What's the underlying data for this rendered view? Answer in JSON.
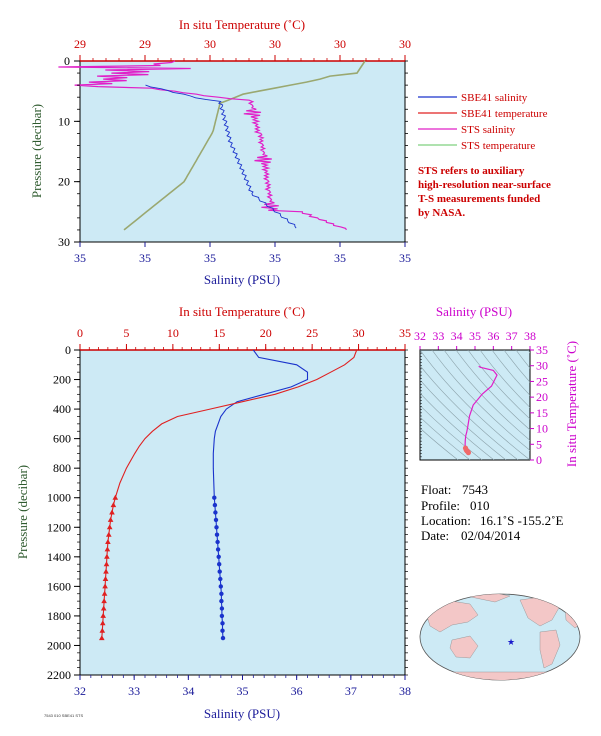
{
  "colors": {
    "plot_bg": "#cdeaf5",
    "salinity_line": "#1a33cc",
    "temperature_line": "#e02020",
    "sts_salinity": "#e020c8",
    "sts_temperature": "#9aa870",
    "axis_red": "#cc0000",
    "axis_blue": "#1a1a99",
    "axis_green": "#2e5a2e",
    "axis_magenta": "#cc00cc",
    "land": "#f3c7c7",
    "ocean": "#cdeaf5"
  },
  "chart_data": [
    {
      "type": "line",
      "id": "near-surface",
      "top_title": "In situ Temperature (˚C)",
      "top_ticks": [
        "29",
        "29",
        "30",
        "30",
        "30",
        "30"
      ],
      "bottom_title": "Salinity (PSU)",
      "bottom_ticks": [
        "35",
        "35",
        "35",
        "35",
        "35",
        "35"
      ],
      "ylabel": "Pressure (decibar)",
      "y_ticks": [
        "0",
        "10",
        "20",
        "30"
      ],
      "ylim": [
        0,
        30
      ],
      "grid": false,
      "legend_position": "right",
      "legend": [
        "SBE41 salinity",
        "SBE41 temperature",
        "STS salinity",
        "STS temperature"
      ],
      "note": [
        "STS refers to auxiliary",
        "high-resolution near-surface",
        "T-S measurements funded",
        "by NASA."
      ]
    },
    {
      "type": "line",
      "id": "full-profile",
      "top_title": "In situ Temperature (˚C)",
      "top_ticks": [
        "0",
        "5",
        "10",
        "15",
        "20",
        "25",
        "30",
        "35"
      ],
      "xlim_temperature": [
        0,
        35
      ],
      "bottom_title": "Salinity (PSU)",
      "bottom_ticks": [
        "32",
        "33",
        "34",
        "35",
        "36",
        "37",
        "38"
      ],
      "xlim_salinity": [
        32,
        38
      ],
      "ylabel": "Pressure (decibar)",
      "y_ticks": [
        "0",
        "200",
        "400",
        "600",
        "800",
        "1000",
        "1200",
        "1400",
        "1600",
        "1800",
        "2000",
        "2200"
      ],
      "ylim": [
        0,
        2200
      ],
      "grid": false,
      "series": [
        {
          "name": "SBE41 salinity",
          "pressure": [
            0,
            50,
            100,
            150,
            200,
            250,
            300,
            350,
            400,
            450,
            500,
            550,
            600,
            650,
            700,
            800,
            900,
            1000,
            1050,
            1100,
            1150,
            1200,
            1250,
            1300,
            1350,
            1400,
            1450,
            1500,
            1550,
            1600,
            1650,
            1700,
            1750,
            1800,
            1850,
            1900,
            1950
          ],
          "values": [
            35.2,
            35.3,
            36.0,
            36.2,
            36.2,
            35.9,
            35.4,
            34.9,
            34.7,
            34.6,
            34.55,
            34.5,
            34.48,
            34.47,
            34.46,
            34.46,
            34.47,
            34.48,
            34.49,
            34.5,
            34.51,
            34.52,
            34.53,
            34.54,
            34.55,
            34.56,
            34.57,
            34.58,
            34.59,
            34.6,
            34.61,
            34.61,
            34.62,
            34.62,
            34.63,
            34.63,
            34.64
          ]
        },
        {
          "name": "SBE41 temperature",
          "pressure": [
            0,
            50,
            100,
            150,
            200,
            250,
            300,
            350,
            400,
            450,
            500,
            550,
            600,
            650,
            700,
            800,
            900,
            1000,
            1050,
            1100,
            1150,
            1200,
            1250,
            1300,
            1350,
            1400,
            1450,
            1500,
            1550,
            1600,
            1650,
            1700,
            1750,
            1800,
            1850,
            1900,
            1950
          ],
          "values": [
            29.8,
            29.5,
            28.5,
            27.0,
            25.5,
            23.5,
            21.0,
            17.5,
            14.0,
            10.5,
            8.8,
            7.8,
            7.0,
            6.4,
            5.9,
            5.0,
            4.3,
            3.8,
            3.6,
            3.45,
            3.3,
            3.2,
            3.1,
            3.0,
            2.95,
            2.9,
            2.85,
            2.8,
            2.75,
            2.7,
            2.65,
            2.6,
            2.55,
            2.5,
            2.45,
            2.4,
            2.35
          ]
        }
      ]
    },
    {
      "type": "line",
      "id": "ts-diagram",
      "top_title": "Salinity (PSU)",
      "top_ticks": [
        "32",
        "33",
        "34",
        "35",
        "36",
        "37",
        "38"
      ],
      "xlim": [
        32,
        38
      ],
      "right_title": "In situ Temperature (˚C)",
      "right_ticks": [
        "35",
        "30",
        "25",
        "20",
        "15",
        "10",
        "5",
        "0"
      ],
      "ylim": [
        0,
        35
      ],
      "series": [
        {
          "name": "T-S",
          "x": [
            35.2,
            35.3,
            36.0,
            36.2,
            35.9,
            35.4,
            34.9,
            34.7,
            34.6,
            34.55,
            34.5,
            34.47,
            34.46,
            34.48,
            34.52,
            34.56,
            34.6,
            34.64
          ],
          "y": [
            29.8,
            29.5,
            28.5,
            27.0,
            23.5,
            21.0,
            17.5,
            14.0,
            10.5,
            8.8,
            7.8,
            6.4,
            5.0,
            3.8,
            3.2,
            2.9,
            2.7,
            2.35
          ]
        }
      ]
    }
  ],
  "float_info": {
    "float_label": "Float:",
    "float_value": "7543",
    "profile_label": "Profile:",
    "profile_value": "010",
    "location_label": "Location:",
    "location_value": "16.1˚S  -155.2˚E",
    "date_label": "Date:",
    "date_value": "02/04/2014"
  },
  "footer_code": "7543 010 SBE41 STS"
}
